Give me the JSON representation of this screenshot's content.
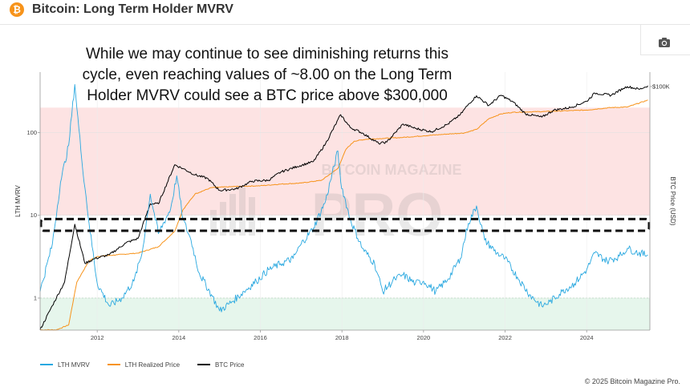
{
  "header": {
    "logo_glyph": "₿",
    "title": "Bitcoin: Long Term Holder MVRV",
    "camera_icon": "camera-icon"
  },
  "annotation": {
    "lines": [
      "While we may continue to see diminishing returns this",
      "cycle, even reaching values of ~8.00 on the Long Term",
      "Holder MVRV could see a BTC price above $300,000"
    ]
  },
  "watermark": {
    "line1": "BITCOIN MAGAZINE",
    "line2": "PRO"
  },
  "copyright": "© 2025 Bitcoin Magazine Pro.",
  "colors": {
    "lth_mvrv": "#29a8e0",
    "lth_realized": "#f7931a",
    "btc_price": "#000000",
    "red_zone": "#fde3e3",
    "green_zone": "#e6f6ec"
  },
  "chart_data": {
    "type": "line",
    "x_ticks": [
      "2012",
      "2014",
      "2016",
      "2018",
      "2020",
      "2022",
      "2024"
    ],
    "left_axis": {
      "label": "LTH MVRV",
      "scale": "log",
      "ticks": [
        "1",
        "10",
        "100"
      ],
      "range": [
        0.4,
        700
      ]
    },
    "right_axis": {
      "label": "BTC Price (USD)",
      "scale": "log",
      "ticks": [
        "$100K"
      ]
    },
    "bands": [
      {
        "name": "high",
        "from": 10,
        "to": 200,
        "color": "#fde3e3"
      },
      {
        "name": "low",
        "from": 0.4,
        "to": 1,
        "color": "#e6f6ec"
      }
    ],
    "highlight_band": {
      "from": 6.5,
      "to": 9,
      "style": "dashed"
    },
    "series": [
      {
        "name": "LTH MVRV",
        "color": "#29a8e0",
        "x": [
          2010.6,
          2010.9,
          2011.1,
          2011.3,
          2011.45,
          2011.6,
          2011.8,
          2012.0,
          2012.3,
          2012.6,
          2012.9,
          2013.1,
          2013.3,
          2013.5,
          2013.8,
          2013.95,
          2014.1,
          2014.3,
          2014.5,
          2014.8,
          2015.0,
          2015.3,
          2015.6,
          2015.9,
          2016.2,
          2016.5,
          2016.8,
          2017.0,
          2017.3,
          2017.6,
          2017.9,
          2017.97,
          2018.2,
          2018.5,
          2018.8,
          2019.0,
          2019.3,
          2019.5,
          2019.8,
          2020.0,
          2020.3,
          2020.6,
          2020.9,
          2021.1,
          2021.3,
          2021.5,
          2021.8,
          2022.0,
          2022.3,
          2022.6,
          2022.9,
          2023.1,
          2023.4,
          2023.7,
          2024.0,
          2024.2,
          2024.5,
          2024.8,
          2025.0,
          2025.2,
          2025.5
        ],
        "y": [
          1.2,
          4.5,
          25,
          70,
          380,
          60,
          8,
          1.5,
          0.8,
          1.0,
          1.6,
          3.5,
          18,
          6,
          12,
          30,
          9,
          5,
          2,
          1.1,
          0.7,
          0.9,
          1.2,
          1.6,
          2.2,
          2.6,
          3.0,
          4.5,
          7,
          15,
          60,
          25,
          9,
          4,
          2.6,
          1.2,
          1.7,
          1.9,
          1.5,
          1.6,
          1.2,
          1.7,
          3,
          8,
          13,
          5,
          3.5,
          3.0,
          1.8,
          1.1,
          0.8,
          0.9,
          1.2,
          1.5,
          2.2,
          3.5,
          2.8,
          3.2,
          4.0,
          3.6,
          3.3
        ]
      },
      {
        "name": "LTH Realized Price",
        "color": "#f7931a",
        "x": [
          2010.6,
          2011.0,
          2011.3,
          2011.5,
          2011.8,
          2012.0,
          2012.5,
          2013.0,
          2013.5,
          2013.9,
          2014.1,
          2014.4,
          2014.8,
          2015.5,
          2016.0,
          2016.5,
          2017.0,
          2017.5,
          2017.9,
          2018.1,
          2018.3,
          2018.6,
          2019.0,
          2019.5,
          2020.0,
          2020.5,
          2021.0,
          2021.3,
          2021.6,
          2021.9,
          2022.2,
          2022.6,
          2023.0,
          2023.5,
          2024.0,
          2024.3,
          2024.6,
          2025.0,
          2025.5
        ],
        "y": [
          0.06,
          0.06,
          0.08,
          1.0,
          3.5,
          4.5,
          5.0,
          5.5,
          8.0,
          20,
          70,
          180,
          260,
          280,
          290,
          320,
          340,
          400,
          800,
          2500,
          4000,
          4500,
          4700,
          5000,
          5500,
          6000,
          6500,
          8000,
          15000,
          20000,
          22000,
          22500,
          23000,
          24000,
          25000,
          27000,
          29000,
          30000,
          45000
        ]
      },
      {
        "name": "BTC Price",
        "color": "#000000",
        "x": [
          2010.6,
          2010.9,
          2011.2,
          2011.45,
          2011.7,
          2011.95,
          2012.3,
          2012.7,
          2013.0,
          2013.3,
          2013.5,
          2013.9,
          2014.1,
          2014.4,
          2014.7,
          2015.0,
          2015.4,
          2015.8,
          2016.2,
          2016.5,
          2016.9,
          2017.3,
          2017.6,
          2017.97,
          2018.2,
          2018.5,
          2018.9,
          2019.1,
          2019.5,
          2019.8,
          2020.2,
          2020.6,
          2020.9,
          2021.1,
          2021.3,
          2021.6,
          2021.9,
          2022.2,
          2022.5,
          2022.9,
          2023.2,
          2023.6,
          2024.0,
          2024.2,
          2024.6,
          2024.9,
          2025.0,
          2025.3,
          2025.5
        ],
        "y": [
          0.06,
          0.25,
          1,
          30,
          3,
          4,
          5,
          10,
          13,
          100,
          100,
          1000,
          800,
          550,
          450,
          220,
          240,
          380,
          400,
          650,
          900,
          1200,
          3500,
          19000,
          9000,
          6500,
          3500,
          3800,
          11000,
          8500,
          7000,
          11000,
          19000,
          35000,
          58000,
          33000,
          60000,
          40000,
          20000,
          16500,
          25000,
          29000,
          42000,
          68000,
          60000,
          90000,
          100000,
          85000,
          105000
        ]
      }
    ]
  }
}
